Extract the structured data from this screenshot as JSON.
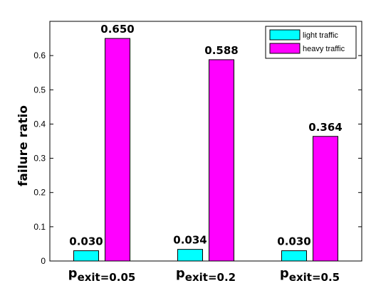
{
  "chart_data": {
    "type": "bar",
    "ylabel": "failure ratio",
    "ylim": [
      0,
      0.7
    ],
    "yticks": [
      "0",
      "0.1",
      "0.2",
      "0.3",
      "0.4",
      "0.5",
      "0.6"
    ],
    "grid": false,
    "legend_position": "top-right",
    "categories": [
      {
        "base": "p",
        "sub": "exit",
        "rest": "=0.05"
      },
      {
        "base": "p",
        "sub": "exit",
        "rest": "=0.2"
      },
      {
        "base": "p",
        "sub": "exit",
        "rest": "=0.5"
      }
    ],
    "series": [
      {
        "name": "light traffic",
        "color": "#00ffff",
        "values": [
          0.03,
          0.034,
          0.03
        ],
        "labels": [
          "0.030",
          "0.034",
          "0.030"
        ]
      },
      {
        "name": "heavy traffic",
        "color": "#ff00ff",
        "values": [
          0.65,
          0.588,
          0.364
        ],
        "labels": [
          "0.650",
          "0.588",
          "0.364"
        ]
      }
    ]
  }
}
